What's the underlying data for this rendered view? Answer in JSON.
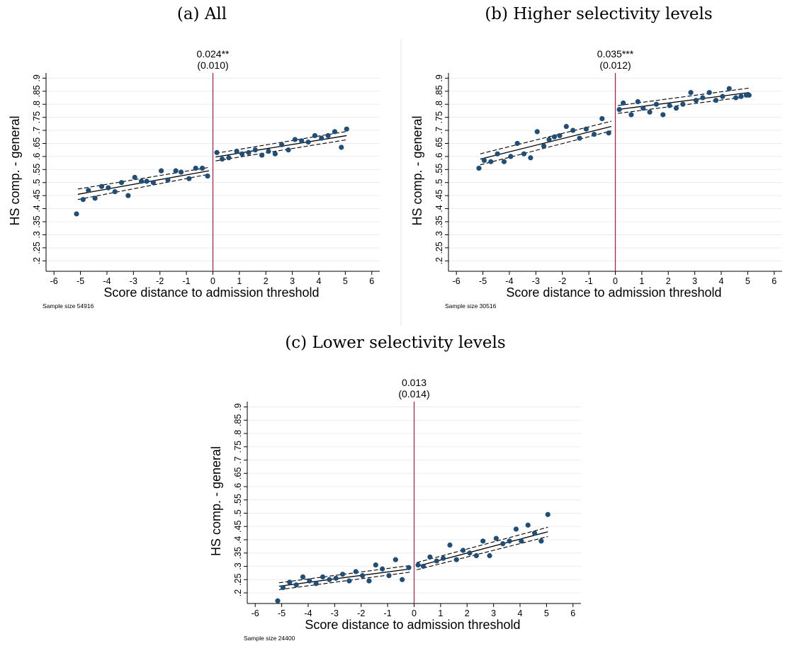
{
  "chart_data": [
    {
      "type": "scatter",
      "caption": "(a) All",
      "xlabel": "Score distance to admission threshold",
      "ylabel": "HS comp. - general",
      "estimate": "0.024**",
      "std_error": "(0.010)",
      "sample_note": "Sample size 54916",
      "xlim": [
        -6.3,
        6.3
      ],
      "xticks": [
        "-6",
        "-5",
        "-4",
        "-3",
        "-2",
        "-1",
        "0",
        "1",
        "2",
        "3",
        "4",
        "5",
        "6"
      ],
      "ylim": [
        0.16,
        0.92
      ],
      "yticks": [
        ".2",
        ".25",
        ".3",
        ".35",
        ".4",
        ".45",
        ".5",
        ".55",
        ".6",
        ".65",
        ".7",
        ".75",
        ".8",
        ".85",
        ".9"
      ],
      "ytick_values": [
        0.2,
        0.25,
        0.3,
        0.35,
        0.4,
        0.45,
        0.5,
        0.55,
        0.6,
        0.65,
        0.7,
        0.75,
        0.8,
        0.85,
        0.9
      ],
      "grid": true,
      "cutoff": 0,
      "points": [
        [
          -5.15,
          0.38
        ],
        [
          -4.9,
          0.435
        ],
        [
          -4.7,
          0.47
        ],
        [
          -4.45,
          0.44
        ],
        [
          -4.2,
          0.485
        ],
        [
          -3.95,
          0.48
        ],
        [
          -3.7,
          0.465
        ],
        [
          -3.45,
          0.5
        ],
        [
          -3.2,
          0.45
        ],
        [
          -2.95,
          0.52
        ],
        [
          -2.7,
          0.505
        ],
        [
          -2.5,
          0.505
        ],
        [
          -2.25,
          0.5
        ],
        [
          -1.95,
          0.545
        ],
        [
          -1.7,
          0.51
        ],
        [
          -1.4,
          0.545
        ],
        [
          -1.2,
          0.54
        ],
        [
          -0.9,
          0.515
        ],
        [
          -0.65,
          0.555
        ],
        [
          -0.4,
          0.555
        ],
        [
          -0.2,
          0.525
        ],
        [
          0.15,
          0.615
        ],
        [
          0.35,
          0.59
        ],
        [
          0.6,
          0.595
        ],
        [
          0.9,
          0.62
        ],
        [
          1.1,
          0.61
        ],
        [
          1.35,
          0.615
        ],
        [
          1.6,
          0.625
        ],
        [
          1.85,
          0.605
        ],
        [
          2.1,
          0.62
        ],
        [
          2.35,
          0.61
        ],
        [
          2.6,
          0.645
        ],
        [
          2.85,
          0.625
        ],
        [
          3.1,
          0.665
        ],
        [
          3.35,
          0.66
        ],
        [
          3.6,
          0.655
        ],
        [
          3.85,
          0.68
        ],
        [
          4.1,
          0.67
        ],
        [
          4.35,
          0.68
        ],
        [
          4.6,
          0.695
        ],
        [
          4.85,
          0.635
        ],
        [
          5.05,
          0.705
        ]
      ],
      "fit_left": {
        "x": [
          -5.1,
          -0.15
        ],
        "y": [
          0.455,
          0.545
        ],
        "ci_low": [
          0.435,
          0.532
        ],
        "ci_high": [
          0.475,
          0.558
        ]
      },
      "fit_right": {
        "x": [
          0.1,
          5.05
        ],
        "y": [
          0.598,
          0.68
        ],
        "ci_low": [
          0.583,
          0.664
        ],
        "ci_high": [
          0.612,
          0.696
        ]
      }
    },
    {
      "type": "scatter",
      "caption": "(b) Higher selectivity levels",
      "xlabel": "Score distance to admission threshold",
      "ylabel": "HS comp. - general",
      "estimate": "0.035***",
      "std_error": "(0.012)",
      "sample_note": "Sample size 30516",
      "xlim": [
        -6.3,
        6.3
      ],
      "xticks": [
        "-6",
        "-5",
        "-4",
        "-3",
        "-2",
        "-1",
        "0",
        "1",
        "2",
        "3",
        "4",
        "5",
        "6"
      ],
      "ylim": [
        0.16,
        0.92
      ],
      "yticks": [
        ".2",
        ".25",
        ".3",
        ".35",
        ".4",
        ".45",
        ".5",
        ".55",
        ".6",
        ".65",
        ".7",
        ".75",
        ".8",
        ".85",
        ".9"
      ],
      "ytick_values": [
        0.2,
        0.25,
        0.3,
        0.35,
        0.4,
        0.45,
        0.5,
        0.55,
        0.6,
        0.65,
        0.7,
        0.75,
        0.8,
        0.85,
        0.9
      ],
      "grid": true,
      "cutoff": 0,
      "points": [
        [
          -5.15,
          0.555
        ],
        [
          -4.95,
          0.585
        ],
        [
          -4.7,
          0.58
        ],
        [
          -4.45,
          0.61
        ],
        [
          -4.2,
          0.58
        ],
        [
          -3.95,
          0.6
        ],
        [
          -3.7,
          0.65
        ],
        [
          -3.45,
          0.61
        ],
        [
          -3.2,
          0.595
        ],
        [
          -2.95,
          0.695
        ],
        [
          -2.7,
          0.64
        ],
        [
          -2.5,
          0.665
        ],
        [
          -2.3,
          0.675
        ],
        [
          -2.1,
          0.68
        ],
        [
          -1.85,
          0.715
        ],
        [
          -1.6,
          0.7
        ],
        [
          -1.35,
          0.67
        ],
        [
          -1.1,
          0.705
        ],
        [
          -0.8,
          0.685
        ],
        [
          -0.5,
          0.745
        ],
        [
          -0.25,
          0.69
        ],
        [
          0.15,
          0.78
        ],
        [
          0.3,
          0.805
        ],
        [
          0.6,
          0.76
        ],
        [
          0.85,
          0.81
        ],
        [
          1.05,
          0.785
        ],
        [
          1.3,
          0.77
        ],
        [
          1.55,
          0.8
        ],
        [
          1.8,
          0.76
        ],
        [
          2.05,
          0.795
        ],
        [
          2.3,
          0.785
        ],
        [
          2.55,
          0.8
        ],
        [
          2.85,
          0.845
        ],
        [
          3.05,
          0.815
        ],
        [
          3.3,
          0.825
        ],
        [
          3.55,
          0.845
        ],
        [
          3.8,
          0.815
        ],
        [
          4.05,
          0.83
        ],
        [
          4.3,
          0.86
        ],
        [
          4.55,
          0.825
        ],
        [
          4.75,
          0.83
        ],
        [
          4.95,
          0.835
        ],
        [
          5.05,
          0.835
        ]
      ],
      "fit_left": {
        "x": [
          -5.1,
          -0.15
        ],
        "y": [
          0.59,
          0.715
        ],
        "ci_low": [
          0.568,
          0.698
        ],
        "ci_high": [
          0.61,
          0.735
        ]
      },
      "fit_right": {
        "x": [
          0.1,
          5.05
        ],
        "y": [
          0.78,
          0.845
        ],
        "ci_low": [
          0.765,
          0.83
        ],
        "ci_high": [
          0.795,
          0.862
        ]
      }
    },
    {
      "type": "scatter",
      "caption": "(c) Lower selectivity levels",
      "xlabel": "Score distance to admission threshold",
      "ylabel": "HS comp. - general",
      "estimate": "0.013",
      "std_error": "(0.014)",
      "sample_note": "Sample size 24400",
      "xlim": [
        -6.3,
        6.3
      ],
      "xticks": [
        "-6",
        "-5",
        "-4",
        "-3",
        "-2",
        "-1",
        "0",
        "1",
        "2",
        "3",
        "4",
        "5",
        "6"
      ],
      "ylim": [
        0.16,
        0.92
      ],
      "yticks": [
        ".2",
        ".25",
        ".3",
        ".35",
        ".4",
        ".45",
        ".5",
        ".55",
        ".6",
        ".65",
        ".7",
        ".75",
        ".8",
        ".85",
        ".9"
      ],
      "ytick_values": [
        0.2,
        0.25,
        0.3,
        0.35,
        0.4,
        0.45,
        0.5,
        0.55,
        0.6,
        0.65,
        0.7,
        0.75,
        0.8,
        0.85,
        0.9
      ],
      "grid": true,
      "cutoff": 0,
      "points": [
        [
          -5.15,
          0.17
        ],
        [
          -4.95,
          0.22
        ],
        [
          -4.7,
          0.24
        ],
        [
          -4.45,
          0.23
        ],
        [
          -4.2,
          0.26
        ],
        [
          -3.95,
          0.245
        ],
        [
          -3.7,
          0.235
        ],
        [
          -3.45,
          0.26
        ],
        [
          -3.2,
          0.25
        ],
        [
          -2.95,
          0.255
        ],
        [
          -2.7,
          0.27
        ],
        [
          -2.45,
          0.245
        ],
        [
          -2.2,
          0.28
        ],
        [
          -1.95,
          0.265
        ],
        [
          -1.7,
          0.245
        ],
        [
          -1.45,
          0.305
        ],
        [
          -1.2,
          0.29
        ],
        [
          -0.95,
          0.265
        ],
        [
          -0.7,
          0.325
        ],
        [
          -0.45,
          0.25
        ],
        [
          -0.2,
          0.295
        ],
        [
          0.15,
          0.305
        ],
        [
          0.35,
          0.3
        ],
        [
          0.6,
          0.335
        ],
        [
          0.85,
          0.32
        ],
        [
          1.1,
          0.33
        ],
        [
          1.35,
          0.38
        ],
        [
          1.6,
          0.325
        ],
        [
          1.85,
          0.36
        ],
        [
          2.1,
          0.35
        ],
        [
          2.35,
          0.34
        ],
        [
          2.6,
          0.395
        ],
        [
          2.85,
          0.34
        ],
        [
          3.1,
          0.405
        ],
        [
          3.35,
          0.385
        ],
        [
          3.6,
          0.395
        ],
        [
          3.85,
          0.44
        ],
        [
          4.05,
          0.395
        ],
        [
          4.3,
          0.455
        ],
        [
          4.55,
          0.425
        ],
        [
          4.8,
          0.395
        ],
        [
          5.05,
          0.495
        ]
      ],
      "fit_left": {
        "x": [
          -5.1,
          -0.15
        ],
        "y": [
          0.225,
          0.29
        ],
        "ci_low": [
          0.212,
          0.278
        ],
        "ci_high": [
          0.238,
          0.303
        ]
      },
      "fit_right": {
        "x": [
          0.1,
          5.05
        ],
        "y": [
          0.3,
          0.43
        ],
        "ci_low": [
          0.287,
          0.412
        ],
        "ci_high": [
          0.314,
          0.447
        ]
      }
    }
  ]
}
